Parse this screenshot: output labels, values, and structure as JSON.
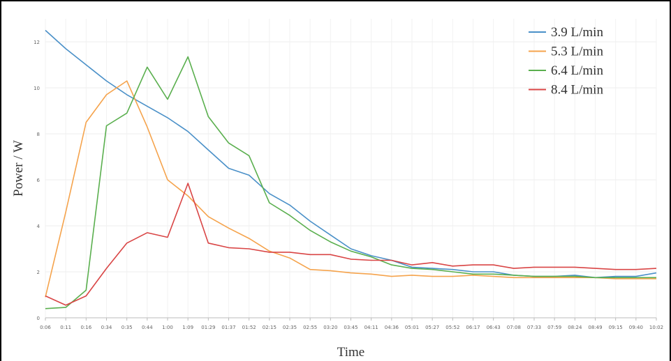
{
  "chart_data": {
    "type": "line",
    "xlabel": "Time",
    "ylabel": "Power / W",
    "ylim": [
      0,
      13
    ],
    "yticks": [
      0,
      2,
      4,
      6,
      8,
      10,
      12
    ],
    "grid": true,
    "legend_position": "top-right",
    "categories": [
      "0:06",
      "0:11",
      "0:16",
      "0:34",
      "0:35",
      "0:44",
      "1:00",
      "1:09",
      "01:29",
      "01:37",
      "01:52",
      "02:15",
      "02:35",
      "02:55",
      "03:20",
      "03:45",
      "04:11",
      "04:36",
      "05:01",
      "05:27",
      "05:52",
      "06:17",
      "06:43",
      "07:08",
      "07:33",
      "07:59",
      "08:24",
      "08:49",
      "09:15",
      "09:40",
      "10:02"
    ],
    "series": [
      {
        "name": "3.9 L/min",
        "color": "#4a90c8",
        "values": [
          12.5,
          11.7,
          11.0,
          10.3,
          9.7,
          9.2,
          8.7,
          8.1,
          7.3,
          6.5,
          6.2,
          5.4,
          4.9,
          4.2,
          3.6,
          3.0,
          2.7,
          2.5,
          2.2,
          2.15,
          2.1,
          2.0,
          2.0,
          1.85,
          1.8,
          1.8,
          1.85,
          1.75,
          1.8,
          1.8,
          1.95
        ]
      },
      {
        "name": "5.3 L/min",
        "color": "#f5a34c",
        "values": [
          0.9,
          4.6,
          8.5,
          9.7,
          10.3,
          8.3,
          6.0,
          5.3,
          4.4,
          3.9,
          3.45,
          2.9,
          2.6,
          2.1,
          2.05,
          1.95,
          1.9,
          1.8,
          1.85,
          1.8,
          1.8,
          1.85,
          1.8,
          1.75,
          1.75,
          1.75,
          1.75,
          1.75,
          1.7,
          1.7,
          1.7
        ]
      },
      {
        "name": "6.4 L/min",
        "color": "#5aaf4e",
        "values": [
          0.4,
          0.45,
          1.2,
          8.35,
          8.9,
          10.9,
          9.5,
          11.35,
          8.75,
          7.6,
          7.05,
          5.0,
          4.45,
          3.8,
          3.3,
          2.9,
          2.65,
          2.3,
          2.15,
          2.1,
          2.0,
          1.9,
          1.9,
          1.85,
          1.8,
          1.8,
          1.8,
          1.75,
          1.75,
          1.75,
          1.75
        ]
      },
      {
        "name": "8.4 L/min",
        "color": "#d94545",
        "values": [
          0.95,
          0.55,
          0.95,
          2.15,
          3.25,
          3.7,
          3.5,
          5.85,
          3.25,
          3.05,
          3.0,
          2.85,
          2.85,
          2.75,
          2.75,
          2.55,
          2.5,
          2.5,
          2.3,
          2.4,
          2.25,
          2.3,
          2.3,
          2.15,
          2.2,
          2.2,
          2.2,
          2.15,
          2.1,
          2.1,
          2.15
        ]
      }
    ]
  }
}
